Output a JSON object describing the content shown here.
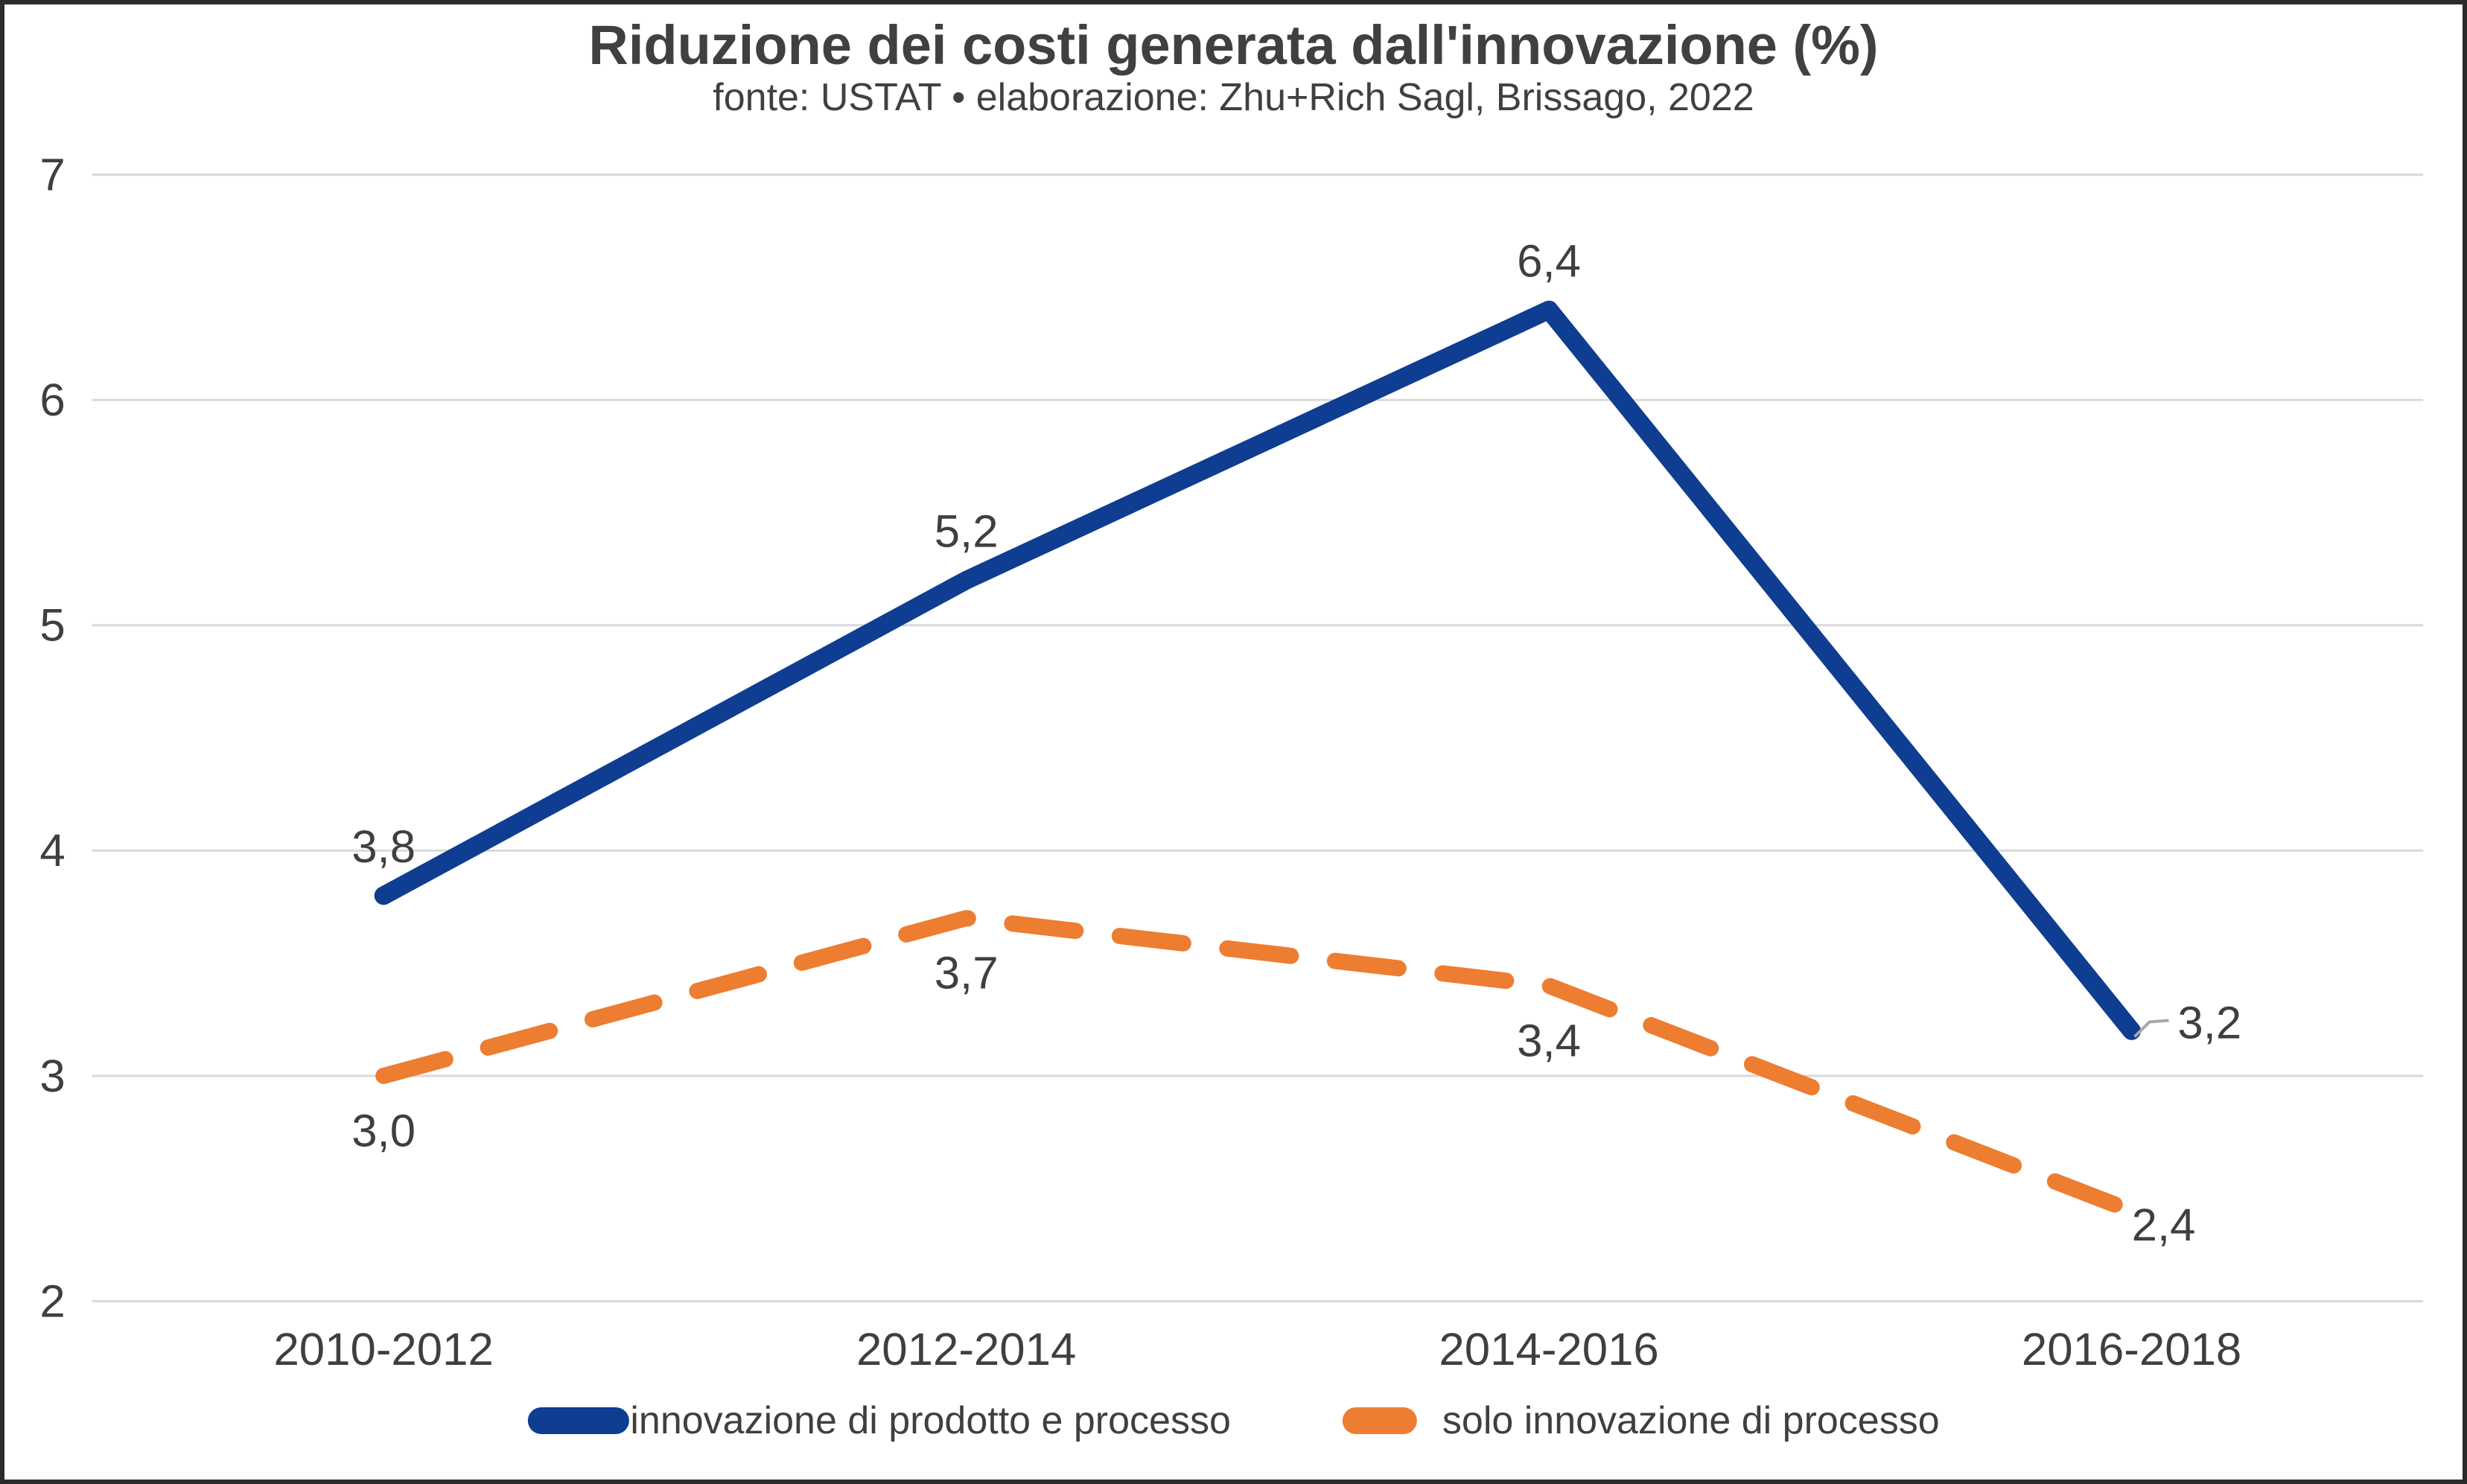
{
  "title": "Riduzione dei costi generata dall'innovazione (%)",
  "subtitle": "fonte: USTAT • elaborazione: Zhu+Rich Sagl, Brissago, 2022",
  "colors": {
    "series_blue": "#0e3d91",
    "series_orange": "#ed7d31",
    "text": "#3f3f3f",
    "title_text": "#404040",
    "gridline": "#d9d9d9",
    "leader_line": "#a8a8a8",
    "frame_border": "#2b2b2b",
    "background": "#ffffff"
  },
  "chart_data": {
    "type": "line",
    "categories": [
      "2010-2012",
      "2012-2014",
      "2014-2016",
      "2016-2018"
    ],
    "series": [
      {
        "name": "innovazione di prodotto e processo",
        "values": [
          3.8,
          5.2,
          6.4,
          3.2
        ],
        "labels": [
          "3,8",
          "5,2",
          "6,4",
          "3,2"
        ],
        "color": "#0e3d91",
        "style": "solid",
        "label_side": "above",
        "last_label_side": "right",
        "leader_on_last": true
      },
      {
        "name": "solo innovazione di processo",
        "values": [
          3.0,
          3.7,
          3.4,
          2.4
        ],
        "labels": [
          "3,0",
          "3,7",
          "3,4",
          "2,4"
        ],
        "color": "#ed7d31",
        "style": "dashed",
        "label_side": "below",
        "last_label_side": "right",
        "leader_on_last": false
      }
    ],
    "ylim": [
      2,
      7
    ],
    "yticks": [
      2,
      3,
      4,
      5,
      6,
      7
    ],
    "ytick_labels": [
      "2",
      "3",
      "4",
      "5",
      "6",
      "7"
    ],
    "grid": true,
    "legend_position": "bottom"
  }
}
